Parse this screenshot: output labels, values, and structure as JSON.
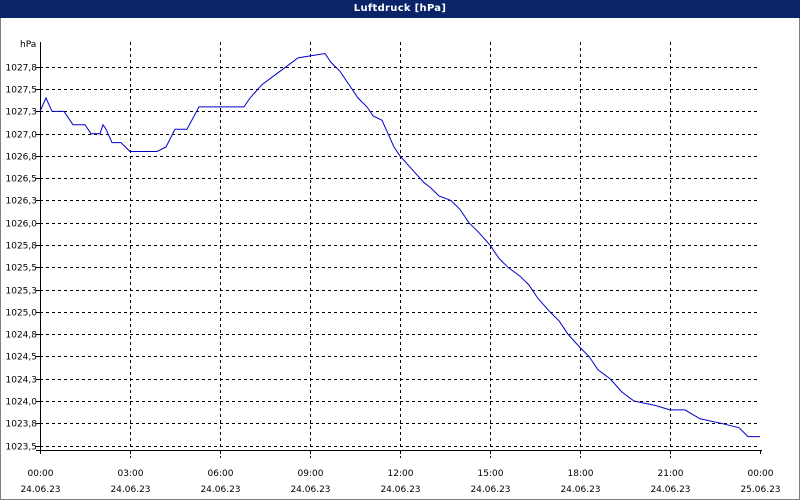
{
  "chart_data": {
    "type": "line",
    "title": "Luftdruck [hPa]",
    "ylabel": "hPa",
    "xlabel": "",
    "grid": true,
    "ylim": [
      1023.5,
      1028.0
    ],
    "xlim": [
      0,
      24
    ],
    "x_ticks": [
      {
        "time": "00:00",
        "date": "24.06.23",
        "h": 0
      },
      {
        "time": "03:00",
        "date": "24.06.23",
        "h": 3
      },
      {
        "time": "06:00",
        "date": "24.06.23",
        "h": 6
      },
      {
        "time": "09:00",
        "date": "24.06.23",
        "h": 9
      },
      {
        "time": "12:00",
        "date": "24.06.23",
        "h": 12
      },
      {
        "time": "15:00",
        "date": "24.06.23",
        "h": 15
      },
      {
        "time": "18:00",
        "date": "24.06.23",
        "h": 18
      },
      {
        "time": "21:00",
        "date": "24.06.23",
        "h": 21
      },
      {
        "time": "00:00",
        "date": "25.06.23",
        "h": 24
      }
    ],
    "y_ticks": [
      {
        "label": "1027,8",
        "v": 1027.8
      },
      {
        "label": "1027,5",
        "v": 1027.55
      },
      {
        "label": "1027,3",
        "v": 1027.3
      },
      {
        "label": "1027,0",
        "v": 1027.05
      },
      {
        "label": "1026,8",
        "v": 1026.8
      },
      {
        "label": "1026,5",
        "v": 1026.55
      },
      {
        "label": "1026,3",
        "v": 1026.3
      },
      {
        "label": "1026,0",
        "v": 1026.05
      },
      {
        "label": "1025,8",
        "v": 1025.8
      },
      {
        "label": "1025,5",
        "v": 1025.55
      },
      {
        "label": "1025,3",
        "v": 1025.3
      },
      {
        "label": "1025,0",
        "v": 1025.05
      },
      {
        "label": "1024,8",
        "v": 1024.8
      },
      {
        "label": "1024,5",
        "v": 1024.55
      },
      {
        "label": "1024,3",
        "v": 1024.3
      },
      {
        "label": "1024,0",
        "v": 1024.05
      },
      {
        "label": "1023,8",
        "v": 1023.8
      },
      {
        "label": "1023,5",
        "v": 1023.55
      }
    ],
    "series": [
      {
        "color": "#0000cc",
        "points": [
          [
            0.0,
            1027.3
          ],
          [
            0.2,
            1027.45
          ],
          [
            0.4,
            1027.3
          ],
          [
            0.8,
            1027.3
          ],
          [
            1.0,
            1027.2
          ],
          [
            1.1,
            1027.15
          ],
          [
            1.5,
            1027.15
          ],
          [
            1.7,
            1027.05
          ],
          [
            2.0,
            1027.05
          ],
          [
            2.1,
            1027.15
          ],
          [
            2.2,
            1027.1
          ],
          [
            2.4,
            1026.95
          ],
          [
            2.7,
            1026.95
          ],
          [
            3.0,
            1026.85
          ],
          [
            3.3,
            1026.85
          ],
          [
            3.9,
            1026.85
          ],
          [
            4.2,
            1026.9
          ],
          [
            4.5,
            1027.1
          ],
          [
            4.9,
            1027.1
          ],
          [
            5.3,
            1027.35
          ],
          [
            6.8,
            1027.35
          ],
          [
            7.0,
            1027.45
          ],
          [
            7.4,
            1027.6
          ],
          [
            7.8,
            1027.7
          ],
          [
            8.2,
            1027.8
          ],
          [
            8.6,
            1027.9
          ],
          [
            9.5,
            1027.95
          ],
          [
            9.7,
            1027.85
          ],
          [
            10.0,
            1027.75
          ],
          [
            10.3,
            1027.6
          ],
          [
            10.6,
            1027.45
          ],
          [
            10.9,
            1027.35
          ],
          [
            11.1,
            1027.25
          ],
          [
            11.4,
            1027.2
          ],
          [
            11.6,
            1027.05
          ],
          [
            11.8,
            1026.9
          ],
          [
            12.0,
            1026.8
          ],
          [
            12.4,
            1026.65
          ],
          [
            12.8,
            1026.5
          ],
          [
            13.0,
            1026.45
          ],
          [
            13.3,
            1026.35
          ],
          [
            13.7,
            1026.3
          ],
          [
            14.0,
            1026.2
          ],
          [
            14.3,
            1026.05
          ],
          [
            14.6,
            1025.95
          ],
          [
            15.0,
            1025.8
          ],
          [
            15.3,
            1025.65
          ],
          [
            15.6,
            1025.55
          ],
          [
            16.0,
            1025.45
          ],
          [
            16.3,
            1025.35
          ],
          [
            16.6,
            1025.2
          ],
          [
            17.0,
            1025.05
          ],
          [
            17.3,
            1024.95
          ],
          [
            17.6,
            1024.8
          ],
          [
            18.0,
            1024.65
          ],
          [
            18.3,
            1024.55
          ],
          [
            18.6,
            1024.4
          ],
          [
            19.0,
            1024.3
          ],
          [
            19.4,
            1024.15
          ],
          [
            19.8,
            1024.05
          ],
          [
            20.5,
            1024.0
          ],
          [
            21.0,
            1023.95
          ],
          [
            21.5,
            1023.95
          ],
          [
            22.0,
            1023.85
          ],
          [
            22.7,
            1023.8
          ],
          [
            23.3,
            1023.75
          ],
          [
            23.6,
            1023.65
          ],
          [
            24.0,
            1023.65
          ]
        ]
      }
    ]
  }
}
